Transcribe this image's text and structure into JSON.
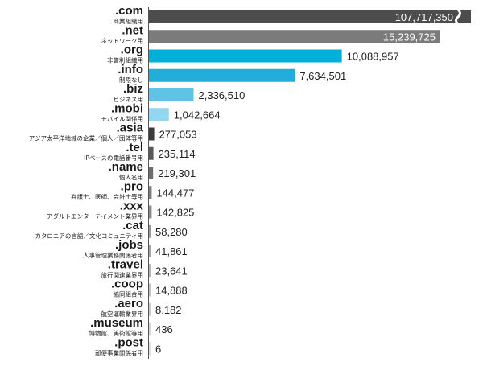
{
  "chart_data": {
    "type": "bar",
    "orientation": "horizontal",
    "axis_break_on_first_bar": true,
    "categories": [
      {
        "tld": ".com",
        "desc": "商業組織用"
      },
      {
        "tld": ".net",
        "desc": "ネットワーク用"
      },
      {
        "tld": ".org",
        "desc": "非営利組織用"
      },
      {
        "tld": ".info",
        "desc": "制限なし"
      },
      {
        "tld": ".biz",
        "desc": "ビジネス用"
      },
      {
        "tld": ".mobi",
        "desc": "モバイル関係用"
      },
      {
        "tld": ".asia",
        "desc": "アジア太平洋地域の企業／個人／団体等用"
      },
      {
        "tld": ".tel",
        "desc": "IPベースの電話番号用"
      },
      {
        "tld": ".name",
        "desc": "個人名用"
      },
      {
        "tld": ".pro",
        "desc": "弁護士、医師、会計士等用"
      },
      {
        "tld": ".xxx",
        "desc": "アダルトエンターテイメント業界用"
      },
      {
        "tld": ".cat",
        "desc": "カタロニアの言語／文化コミュニティ用"
      },
      {
        "tld": ".jobs",
        "desc": "人事管理業務関係者用"
      },
      {
        "tld": ".travel",
        "desc": "旅行関連業界用"
      },
      {
        "tld": ".coop",
        "desc": "協同組合用"
      },
      {
        "tld": ".aero",
        "desc": "航空運輸業界用"
      },
      {
        "tld": ".museum",
        "desc": "博物館、美術館等用"
      },
      {
        "tld": ".post",
        "desc": "郵便事業関係者用"
      }
    ],
    "values": [
      107717350,
      15239725,
      10088957,
      7634501,
      2336510,
      1042664,
      277053,
      235114,
      219301,
      144477,
      142825,
      58280,
      41861,
      23641,
      14888,
      8182,
      436,
      6
    ],
    "value_labels": [
      "107,717,350",
      "15,239,725",
      "10,088,957",
      "7,634,501",
      "2,336,510",
      "1,042,664",
      "277,053",
      "235,114",
      "219,301",
      "144,477",
      "142,825",
      "58,280",
      "41,861",
      "23,641",
      "14,888",
      "8,182",
      "436",
      "6"
    ],
    "bar_colors": [
      "#4d4d4d",
      "#7b7b7b",
      "#00b0d8",
      "#22aedb",
      "#5fc4e3",
      "#92d7ee",
      "#3b3b3b",
      "#595959",
      "#6e6e6e",
      "#7c7c7c",
      "#8a8a8a",
      "#989898",
      "#a6a6a6",
      "#b3b3b3",
      "#bfbfbf",
      "#cacaca",
      "#d5d5d5",
      "#dedede"
    ]
  }
}
